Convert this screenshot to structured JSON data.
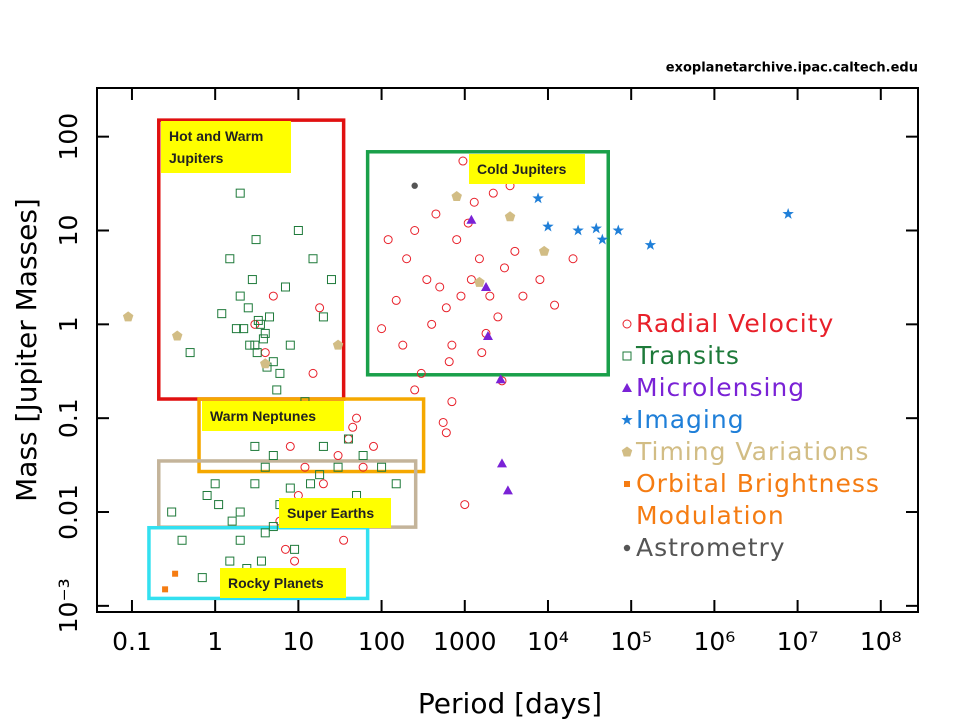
{
  "chart_data": {
    "type": "scatter",
    "source": "exoplanetarchive.ipac.caltech.edu",
    "xlabel": "Period [days]",
    "ylabel": "Mass [Jupiter Masses]",
    "xscale": "log",
    "yscale": "log",
    "xlim": [
      0.038,
      280000000
    ],
    "ylim": [
      0.00086,
      330
    ],
    "xticks": [
      0.1,
      1,
      10,
      100,
      1000,
      {
        "value": 10000,
        "label": "10⁴"
      },
      {
        "value": 100000,
        "label": "10⁵"
      },
      {
        "value": 1000000,
        "label": "10⁶"
      },
      {
        "value": 10000000,
        "label": "10⁷"
      },
      {
        "value": 100000000,
        "label": "10⁸"
      }
    ],
    "yticks": [
      {
        "value": 0.001,
        "label": "10⁻³"
      },
      0.01,
      0.1,
      1,
      10,
      100
    ],
    "series": [
      {
        "name": "Radial Velocity",
        "color": "#e8202a",
        "marker": "circle",
        "x": [
          900,
          1200,
          600,
          1500,
          2000,
          800,
          400,
          3000,
          700,
          1100,
          500,
          2500,
          1800,
          350,
          4000,
          250,
          1300,
          650,
          950,
          5000,
          200,
          150,
          1600,
          2200,
          450,
          300,
          8000,
          12000,
          120,
          100,
          3,
          4,
          5,
          8,
          12,
          20,
          30,
          50,
          15,
          6,
          10,
          40,
          25,
          60,
          80,
          7,
          9,
          35,
          45,
          18,
          700,
          2800,
          20000,
          1000,
          550,
          250,
          180,
          3500,
          1400,
          600
        ],
        "values": [
          2,
          3,
          1.5,
          5,
          2,
          8,
          1,
          4,
          0.6,
          12,
          2.5,
          1.2,
          0.8,
          3,
          6,
          10,
          20,
          0.4,
          55,
          2,
          5,
          1.8,
          0.5,
          25,
          15,
          0.3,
          3,
          1.6,
          8,
          0.9,
          1,
          0.5,
          2,
          0.05,
          0.03,
          0.02,
          0.04,
          0.1,
          0.3,
          0.008,
          0.015,
          0.06,
          0.01,
          0.03,
          0.05,
          0.004,
          0.003,
          0.005,
          0.08,
          1.5,
          0.15,
          0.25,
          5,
          0.012,
          0.09,
          0.2,
          0.6,
          30,
          40,
          0.07
        ]
      },
      {
        "name": "Transits",
        "color": "#1e7a3a",
        "marker": "square",
        "x": [
          3,
          3.5,
          4,
          2.5,
          5,
          2,
          3.2,
          4.5,
          6,
          2.8,
          1.5,
          3.8,
          2.2,
          7,
          1.2,
          4.2,
          3.3,
          2.6,
          5.5,
          3.1,
          10,
          15,
          20,
          8,
          12,
          25,
          2,
          1.8,
          3,
          4,
          0.5,
          0.8,
          1,
          2,
          4,
          6,
          9,
          14,
          30,
          50,
          3,
          5,
          2,
          7,
          1.5,
          20,
          40,
          100,
          150,
          1.1,
          0.3,
          0.4,
          0.7,
          1.6,
          2.4,
          3.6,
          5,
          8,
          18,
          60
        ],
        "values": [
          0.6,
          1,
          0.8,
          1.5,
          0.4,
          2,
          0.5,
          1.2,
          0.3,
          3,
          5,
          0.7,
          0.9,
          2.5,
          1.3,
          0.35,
          1.1,
          0.6,
          0.2,
          8,
          10,
          5,
          1.2,
          0.6,
          0.15,
          3,
          25,
          0.9,
          0.05,
          0.03,
          0.5,
          0.015,
          0.02,
          0.01,
          0.006,
          0.012,
          0.004,
          0.02,
          0.03,
          0.015,
          0.02,
          0.04,
          0.005,
          0.008,
          0.003,
          0.05,
          0.06,
          0.03,
          0.02,
          0.012,
          0.01,
          0.005,
          0.002,
          0.008,
          0.0025,
          0.003,
          0.007,
          0.018,
          0.025,
          0.04
        ]
      },
      {
        "name": "Microlensing",
        "color": "#7a22d6",
        "marker": "triangle",
        "x": [
          1200,
          1800,
          1900,
          2700,
          2800,
          3300
        ],
        "values": [
          13,
          2.5,
          0.75,
          0.26,
          0.033,
          0.017
        ]
      },
      {
        "name": "Imaging",
        "color": "#1f7fd8",
        "marker": "star",
        "x": [
          7600,
          10000,
          23000,
          38000,
          45000,
          70000,
          170000,
          7700000
        ],
        "values": [
          22,
          11,
          10,
          10.5,
          8,
          10,
          7,
          15
        ]
      },
      {
        "name": "Timing Variations",
        "color": "#d2bd85",
        "marker": "pentagon",
        "x": [
          0.09,
          0.35,
          4,
          30,
          800,
          3500,
          9000,
          1500
        ],
        "values": [
          1.2,
          0.75,
          0.38,
          0.6,
          23,
          14,
          6,
          2.8
        ]
      },
      {
        "name": "Orbital Brightness Modulation",
        "color": "#f57c12",
        "marker": "filled-square",
        "x": [
          0.25,
          0.33
        ],
        "values": [
          0.0015,
          0.0022
        ]
      },
      {
        "name": "Astrometry",
        "color": "#555555",
        "marker": "dot",
        "x": [
          250
        ],
        "values": [
          30
        ]
      }
    ],
    "regions": [
      {
        "label": "Hot and Warm Jupiters",
        "color": "#e01010",
        "xlim": [
          0.21,
          35
        ],
        "ylim": [
          0.16,
          150
        ]
      },
      {
        "label": "Cold Jupiters",
        "color": "#1aa04a",
        "xlim": [
          68,
          53000
        ],
        "ylim": [
          0.29,
          69
        ]
      },
      {
        "label": "Warm Neptunes",
        "color": "#f5a800",
        "xlim": [
          0.64,
          320
        ],
        "ylim": [
          0.027,
          0.16
        ]
      },
      {
        "label": "Super Earths",
        "color": "#c4b49a",
        "xlim": [
          0.21,
          257
        ],
        "ylim": [
          0.0069,
          0.035
        ]
      },
      {
        "label": "Rocky Planets",
        "color": "#33e0f0",
        "xlim": [
          0.16,
          68
        ],
        "ylim": [
          0.0012,
          0.0068
        ]
      }
    ]
  }
}
